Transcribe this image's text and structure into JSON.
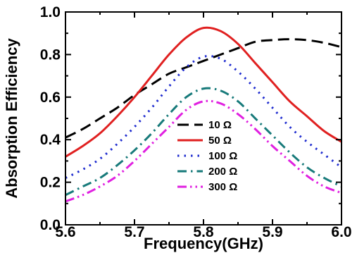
{
  "chart_data": {
    "type": "line",
    "title": "",
    "xlabel": "Frequency(GHz)",
    "ylabel": "Absorption Efficiency",
    "xlim": [
      5.6,
      6.0
    ],
    "ylim": [
      0.0,
      1.0
    ],
    "x_ticks": [
      "5.6",
      "5.7",
      "5.8",
      "5.9",
      "6.0"
    ],
    "y_ticks": [
      "0.0",
      "0.2",
      "0.4",
      "0.6",
      "0.8",
      "1.0"
    ],
    "grid": false,
    "legend_position": "lower-center",
    "series": [
      {
        "name": "10 Ω",
        "color": "#000000",
        "dash": "long-dash",
        "x": [
          5.6,
          5.625,
          5.65,
          5.675,
          5.7,
          5.725,
          5.75,
          5.775,
          5.8,
          5.825,
          5.85,
          5.875,
          5.9,
          5.925,
          5.95,
          5.975,
          6.0
        ],
        "y": [
          0.41,
          0.45,
          0.5,
          0.55,
          0.61,
          0.66,
          0.71,
          0.74,
          0.77,
          0.8,
          0.83,
          0.86,
          0.868,
          0.872,
          0.868,
          0.855,
          0.835
        ]
      },
      {
        "name": "50 Ω",
        "color": "#e02020",
        "dash": "solid",
        "x": [
          5.6,
          5.625,
          5.65,
          5.675,
          5.7,
          5.725,
          5.75,
          5.775,
          5.8,
          5.825,
          5.85,
          5.875,
          5.9,
          5.925,
          5.95,
          5.975,
          6.0
        ],
        "y": [
          0.32,
          0.37,
          0.43,
          0.51,
          0.6,
          0.7,
          0.8,
          0.88,
          0.925,
          0.91,
          0.85,
          0.76,
          0.67,
          0.58,
          0.51,
          0.44,
          0.39
        ]
      },
      {
        "name": "100 Ω",
        "color": "#1f2ccf",
        "dash": "dotted",
        "x": [
          5.6,
          5.625,
          5.65,
          5.675,
          5.7,
          5.725,
          5.75,
          5.775,
          5.8,
          5.825,
          5.85,
          5.875,
          5.9,
          5.925,
          5.95,
          5.975,
          6.0
        ],
        "y": [
          0.22,
          0.26,
          0.31,
          0.38,
          0.46,
          0.55,
          0.65,
          0.74,
          0.79,
          0.78,
          0.72,
          0.64,
          0.55,
          0.46,
          0.39,
          0.33,
          0.27
        ]
      },
      {
        "name": "200 Ω",
        "color": "#177a7a",
        "dash": "dash-dot",
        "x": [
          5.6,
          5.625,
          5.65,
          5.675,
          5.7,
          5.725,
          5.75,
          5.775,
          5.8,
          5.825,
          5.85,
          5.875,
          5.9,
          5.925,
          5.95,
          5.975,
          6.0
        ],
        "y": [
          0.14,
          0.18,
          0.22,
          0.28,
          0.35,
          0.43,
          0.52,
          0.6,
          0.64,
          0.63,
          0.58,
          0.5,
          0.42,
          0.34,
          0.27,
          0.22,
          0.18
        ]
      },
      {
        "name": "300 Ω",
        "color": "#e020e0",
        "dash": "dash-dot-dot",
        "x": [
          5.6,
          5.625,
          5.65,
          5.675,
          5.7,
          5.725,
          5.75,
          5.775,
          5.8,
          5.825,
          5.85,
          5.875,
          5.9,
          5.925,
          5.95,
          5.975,
          6.0
        ],
        "y": [
          0.11,
          0.14,
          0.18,
          0.23,
          0.3,
          0.38,
          0.46,
          0.54,
          0.58,
          0.57,
          0.52,
          0.45,
          0.37,
          0.3,
          0.23,
          0.18,
          0.15
        ]
      }
    ]
  }
}
